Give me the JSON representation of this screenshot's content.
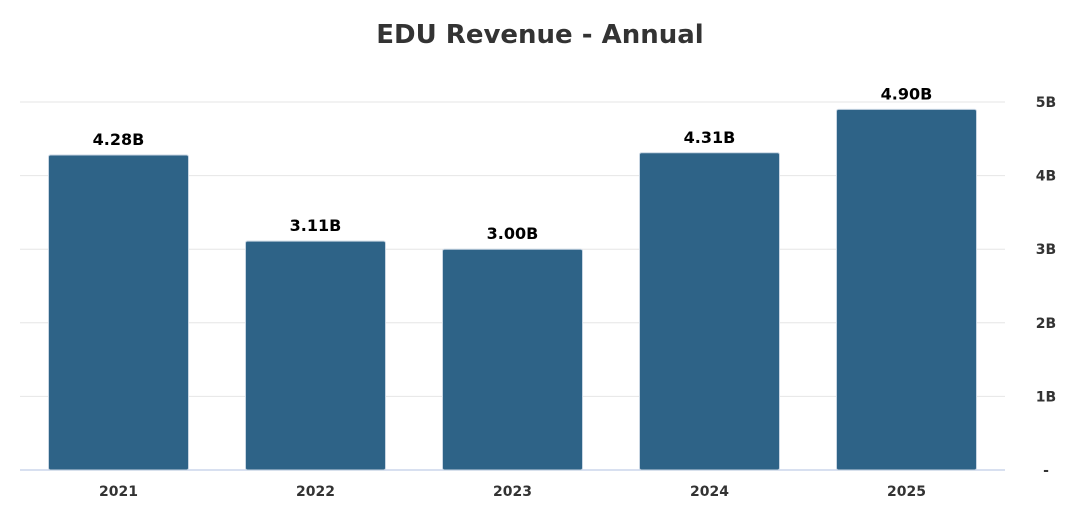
{
  "chart_data": {
    "type": "bar",
    "title": "EDU Revenue - Annual",
    "categories": [
      "2021",
      "2022",
      "2023",
      "2024",
      "2025"
    ],
    "values": [
      4.28,
      3.11,
      3.0,
      4.31,
      4.9
    ],
    "data_labels": [
      "4.28B",
      "3.11B",
      "3.00B",
      "4.31B",
      "4.90B"
    ],
    "unit": "B",
    "ylim": [
      0,
      5
    ],
    "y_ticks": [
      0,
      1,
      2,
      3,
      4,
      5
    ],
    "y_tick_labels": [
      "-",
      "1B",
      "2B",
      "3B",
      "4B",
      "5B"
    ],
    "y_axis_side": "right",
    "grid": true,
    "xlabel": "",
    "ylabel": "",
    "colors": {
      "bar": "#2e6387",
      "bar_edge": "#c9d6e3",
      "grid": "#e6e6e6",
      "axis": "#ccd6eb"
    }
  }
}
